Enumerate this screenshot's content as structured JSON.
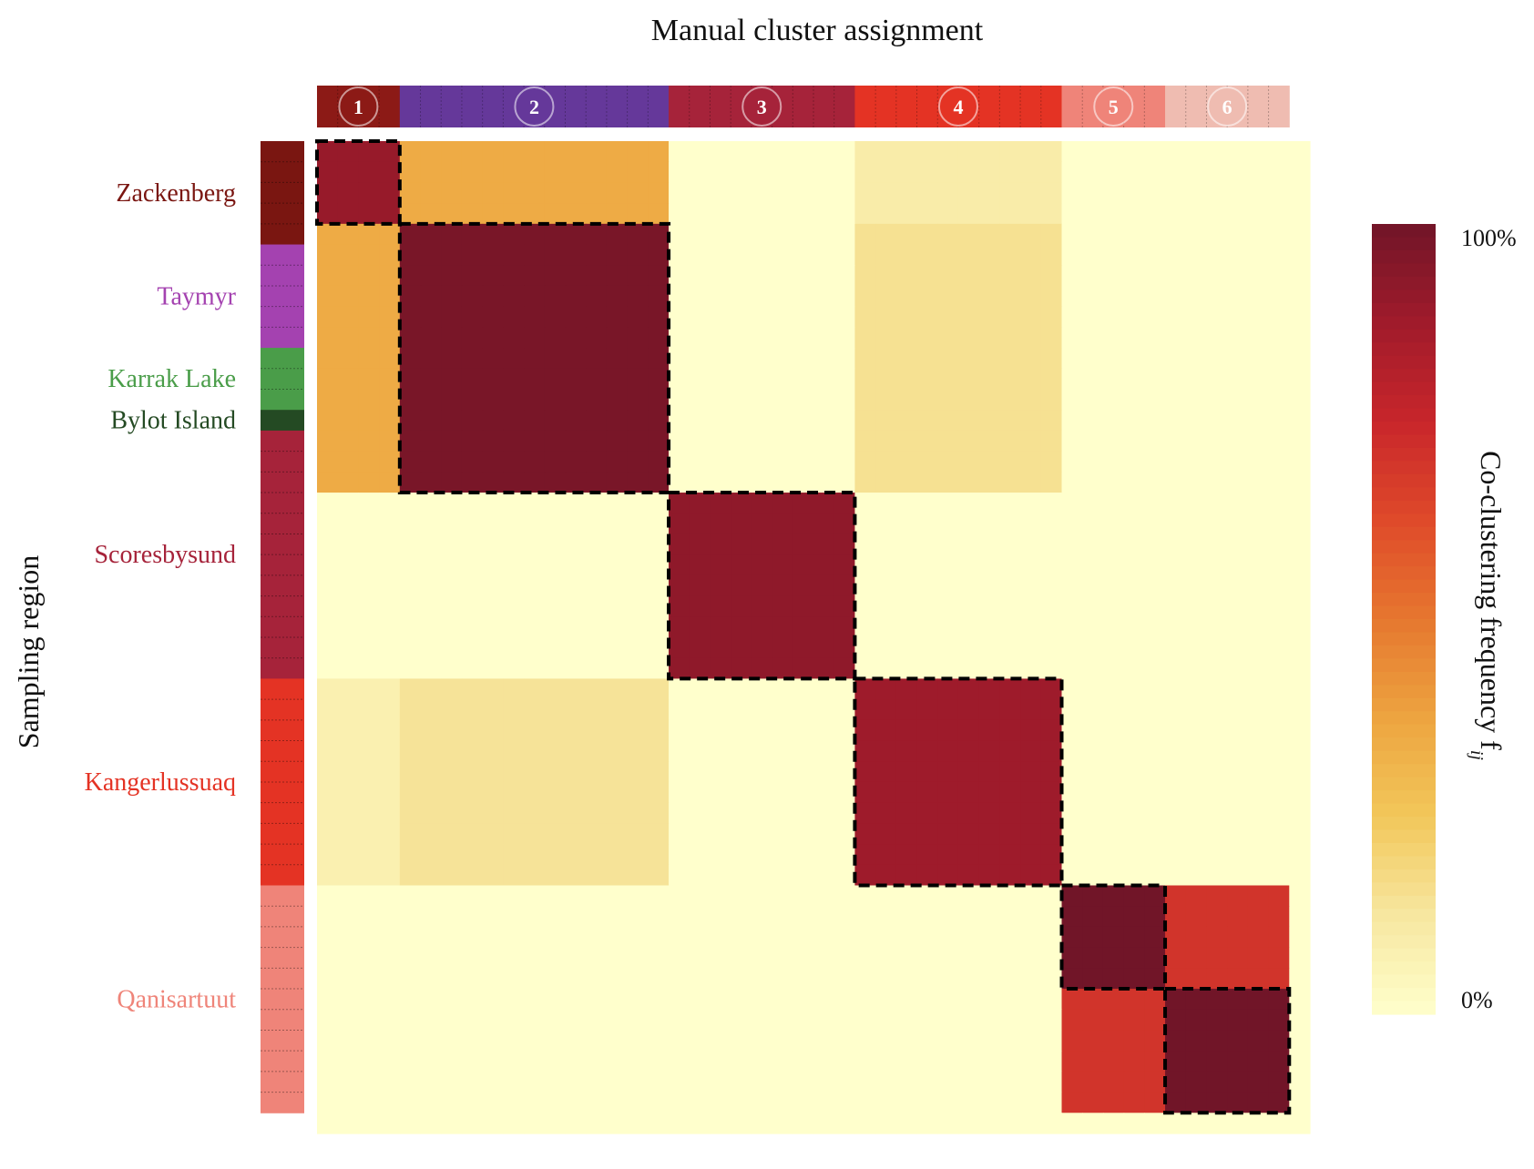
{
  "chart_data": {
    "type": "heatmap",
    "title": "Manual cluster assignment",
    "ylabel": "Sampling region",
    "colorbar": {
      "label": "Co-clustering frequency f",
      "label_subscript": "ij",
      "min_label": "0%",
      "max_label": "100%",
      "range": [
        0,
        100
      ],
      "colormap": [
        "#ffffcc",
        "#f7e7a0",
        "#f2c75a",
        "#eda440",
        "#e6772f",
        "#df4a2a",
        "#c8262b",
        "#a01b2b",
        "#711528"
      ]
    },
    "n_samples": 48,
    "clusters": [
      {
        "label": "1",
        "start": 0,
        "size": 4,
        "color": "#8c1a16"
      },
      {
        "label": "2",
        "start": 4,
        "size": 13,
        "color": "#65389a"
      },
      {
        "label": "3",
        "start": 17,
        "size": 9,
        "color": "#a6233a"
      },
      {
        "label": "4",
        "start": 26,
        "size": 10,
        "color": "#e43324"
      },
      {
        "label": "5",
        "start": 36,
        "size": 5,
        "color": "#ef8479"
      },
      {
        "label": "6",
        "start": 41,
        "size": 6,
        "color": "#efbcb1"
      }
    ],
    "regions": [
      {
        "name": "Zackenberg",
        "start": 0,
        "size": 5,
        "color": "#7a1611"
      },
      {
        "name": "Taymyr",
        "start": 5,
        "size": 5,
        "color": "#a442b0"
      },
      {
        "name": "Karrak Lake",
        "start": 10,
        "size": 3,
        "color": "#4a9d49"
      },
      {
        "name": "Bylot Island",
        "start": 13,
        "size": 1,
        "color": "#244a23"
      },
      {
        "name": "Scoresbysund",
        "start": 14,
        "size": 12,
        "color": "#a6233a"
      },
      {
        "name": "Kangerlussuaq",
        "start": 26,
        "size": 10,
        "color": "#e43324"
      },
      {
        "name": "Qanisartuut",
        "start": 36,
        "size": 11,
        "color": "#ef8479"
      }
    ],
    "highlight_blocks": [
      {
        "rows": [
          0,
          4
        ],
        "cols": [
          0,
          4
        ]
      },
      {
        "rows": [
          4,
          17
        ],
        "cols": [
          4,
          17
        ]
      },
      {
        "rows": [
          17,
          26
        ],
        "cols": [
          17,
          26
        ]
      },
      {
        "rows": [
          26,
          36
        ],
        "cols": [
          26,
          36
        ]
      },
      {
        "rows": [
          36,
          41
        ],
        "cols": [
          36,
          41
        ]
      },
      {
        "rows": [
          41,
          47
        ],
        "cols": [
          41,
          47
        ]
      }
    ],
    "block_values": [
      {
        "rows": [
          0,
          4
        ],
        "cols": [
          0,
          4
        ],
        "value": 90
      },
      {
        "rows": [
          0,
          4
        ],
        "cols": [
          4,
          17
        ],
        "value": 35
      },
      {
        "rows": [
          4,
          17
        ],
        "cols": [
          0,
          4
        ],
        "value": 35
      },
      {
        "rows": [
          0,
          4
        ],
        "cols": [
          26,
          36
        ],
        "value": 10
      },
      {
        "rows": [
          4,
          17
        ],
        "cols": [
          4,
          17
        ],
        "value": 98
      },
      {
        "rows": [
          4,
          17
        ],
        "cols": [
          26,
          36
        ],
        "value": 15
      },
      {
        "rows": [
          17,
          26
        ],
        "cols": [
          17,
          26
        ],
        "value": 92
      },
      {
        "rows": [
          26,
          36
        ],
        "cols": [
          0,
          4
        ],
        "value": 8
      },
      {
        "rows": [
          26,
          36
        ],
        "cols": [
          4,
          17
        ],
        "value": 14
      },
      {
        "rows": [
          26,
          36
        ],
        "cols": [
          26,
          36
        ],
        "value": 88
      },
      {
        "rows": [
          36,
          41
        ],
        "cols": [
          36,
          41
        ],
        "value": 100
      },
      {
        "rows": [
          36,
          41
        ],
        "cols": [
          41,
          47
        ],
        "value": 70
      },
      {
        "rows": [
          41,
          47
        ],
        "cols": [
          36,
          41
        ],
        "value": 70
      },
      {
        "rows": [
          41,
          47
        ],
        "cols": [
          41,
          47
        ],
        "value": 100
      }
    ]
  }
}
